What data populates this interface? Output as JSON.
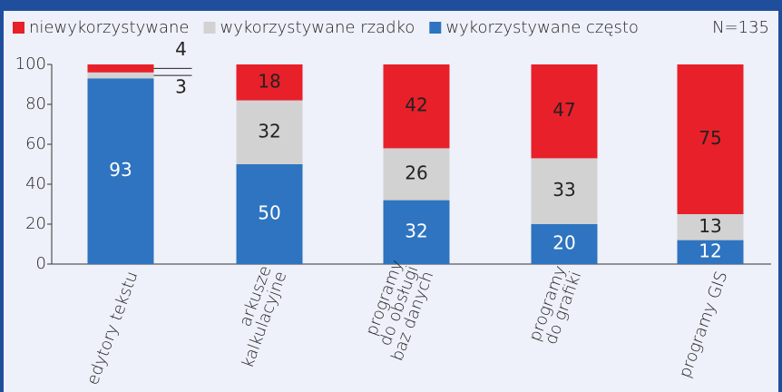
{
  "chart_data": {
    "type": "stacked_bar",
    "categories": [
      "edytory tekstu",
      "arkusze\nkalkulacyjne",
      "programy\ndo obsługi\nbaz danych",
      "programy\ndo grafiki",
      "programy GIS"
    ],
    "series": [
      {
        "name": "wykorzystywane często",
        "color": "#2e74c0",
        "values": [
          93,
          50,
          32,
          20,
          12
        ]
      },
      {
        "name": "wykorzystywane rzadko",
        "color": "#d2d2d2",
        "values": [
          3,
          32,
          26,
          33,
          13
        ]
      },
      {
        "name": "niewykorzystywane",
        "color": "#e8202a",
        "values": [
          4,
          18,
          42,
          47,
          75
        ]
      }
    ],
    "legend_order": [
      2,
      1,
      0
    ],
    "annotation": "N=135",
    "ylim": [
      0,
      100
    ],
    "yticks": [
      0,
      20,
      40,
      60,
      80,
      100
    ]
  }
}
